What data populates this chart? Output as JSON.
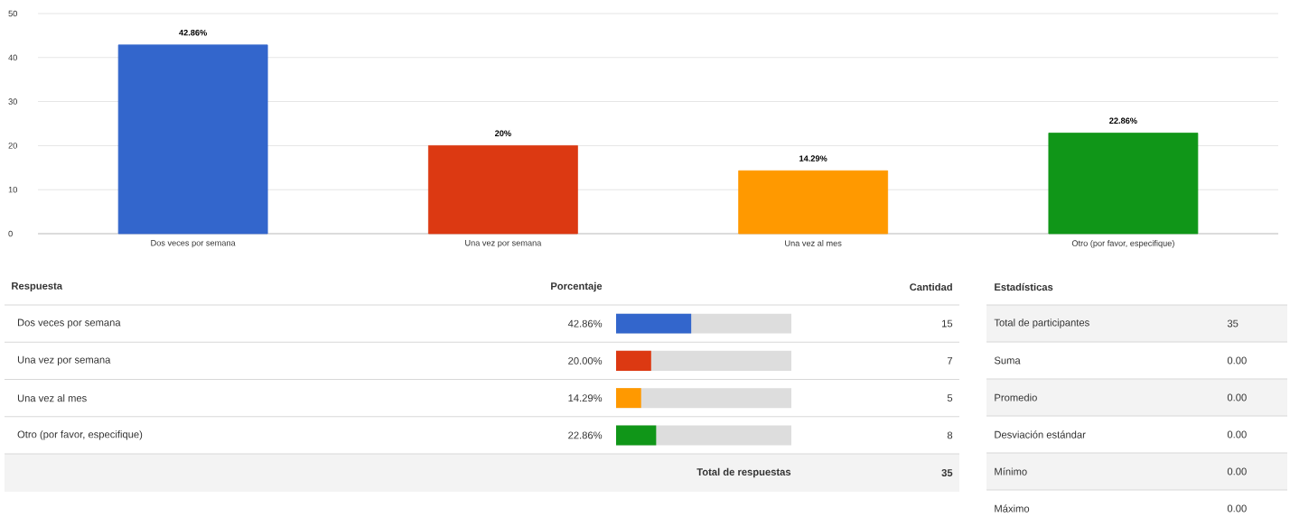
{
  "chart_data": [
    {
      "type": "bar",
      "categories": [
        "Dos veces por semana",
        "Una vez por semana",
        "Una vez al mes",
        "Otro (por favor, especifique)"
      ],
      "values": [
        42.86,
        20,
        14.29,
        22.86
      ],
      "colors": [
        "#3366cc",
        "#dc3912",
        "#ff9900",
        "#109618"
      ],
      "value_labels": [
        "42.86%",
        "20%",
        "14.29%",
        "22.86%"
      ],
      "ylim": [
        0,
        50
      ],
      "yticks": [
        0,
        10,
        20,
        30,
        40,
        50
      ],
      "grid": "y"
    },
    {
      "type": "bar",
      "orientation": "horizontal",
      "categories": [
        "Dos veces por semana",
        "Una vez por semana",
        "Una vez al mes",
        "Otro (por favor, especifique)"
      ],
      "values": [
        42.86,
        20.0,
        14.29,
        22.86
      ],
      "colors": [
        "#3366cc",
        "#dc3912",
        "#ff9900",
        "#109618"
      ],
      "value_labels": [
        "42.86%",
        "20.00%",
        "14.29%",
        "22.86%"
      ],
      "xlim": [
        0,
        100
      ],
      "tick_labels": "y",
      "annotations": [
        "Respuesta",
        "Porcentaje",
        "Cantidad",
        "15",
        "7",
        "5",
        "8",
        "Total de respuestas",
        "35"
      ]
    },
    {
      "type": "other",
      "title": "Estadísticas",
      "categories": [
        "Total de participantes",
        "Suma",
        "Promedio",
        "Desviación estándar",
        "Mínimo",
        "Máximo"
      ],
      "values": [
        35,
        0,
        0,
        0,
        0,
        0
      ],
      "value_labels": [
        "35",
        "0.00",
        "0.00",
        "0.00",
        "0.00",
        "0.00"
      ]
    }
  ]
}
